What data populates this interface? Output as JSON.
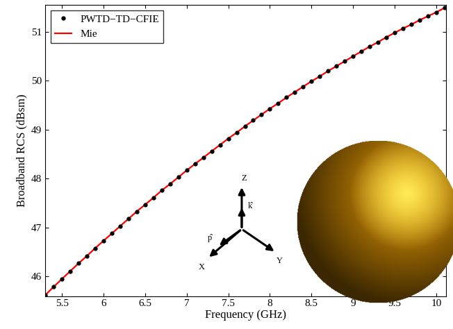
{
  "chart_data": {
    "type": "line",
    "x_label": "Frequency (GHz)",
    "y_label": "Broadband RCS (dBsm)",
    "x": [
      5.3,
      5.4,
      5.5,
      5.6,
      5.7,
      5.8,
      5.9,
      6.0,
      6.1,
      6.2,
      6.3,
      6.4,
      6.5,
      6.6,
      6.7,
      6.8,
      6.9,
      7.0,
      7.1,
      7.2,
      7.3,
      7.4,
      7.5,
      7.6,
      7.7,
      7.8,
      7.9,
      8.0,
      8.1,
      8.2,
      8.3,
      8.4,
      8.5,
      8.6,
      8.7,
      8.8,
      8.9,
      9.0,
      9.1,
      9.2,
      9.3,
      9.4,
      9.5,
      9.6,
      9.7,
      9.8,
      9.9,
      10.0,
      10.1
    ],
    "series": [
      {
        "name": "PWTD−TD−CFIE",
        "type": "scatter",
        "color": "#000000",
        "marker": "dot",
        "values": [
          45.62,
          45.79,
          45.95,
          46.11,
          46.27,
          46.42,
          46.58,
          46.73,
          46.88,
          47.03,
          47.18,
          47.33,
          47.47,
          47.61,
          47.76,
          47.89,
          48.03,
          48.17,
          48.3,
          48.43,
          48.56,
          48.69,
          48.82,
          48.94,
          49.07,
          49.19,
          49.31,
          49.43,
          49.54,
          49.66,
          49.77,
          49.88,
          49.99,
          50.09,
          50.2,
          50.3,
          50.4,
          50.5,
          50.6,
          50.7,
          50.79,
          50.89,
          50.98,
          51.07,
          51.15,
          51.24,
          51.32,
          51.4,
          51.49
        ]
      },
      {
        "name": "Mie",
        "type": "line",
        "color": "#ff0000",
        "line_style": "solid",
        "values": [
          45.62,
          45.79,
          45.95,
          46.11,
          46.27,
          46.42,
          46.58,
          46.73,
          46.88,
          47.03,
          47.18,
          47.33,
          47.47,
          47.61,
          47.76,
          47.89,
          48.03,
          48.17,
          48.3,
          48.43,
          48.56,
          48.69,
          48.82,
          48.94,
          49.07,
          49.19,
          49.31,
          49.43,
          49.54,
          49.66,
          49.77,
          49.88,
          49.99,
          50.09,
          50.2,
          50.3,
          50.4,
          50.5,
          50.6,
          50.7,
          50.79,
          50.89,
          50.98,
          51.07,
          51.15,
          51.24,
          51.32,
          51.4,
          51.49
        ]
      }
    ],
    "xlim": [
      5.3,
      10.12
    ],
    "ylim": [
      45.6,
      51.55
    ],
    "xticks": [
      5.5,
      6,
      6.5,
      7,
      7.5,
      8,
      8.5,
      9,
      9.5,
      10
    ],
    "yticks": [
      46,
      47,
      48,
      49,
      50,
      51
    ],
    "legend": "upper left",
    "grid": false,
    "annotations": [
      "Z",
      "X",
      "Y",
      "k̂",
      "p̂"
    ]
  }
}
